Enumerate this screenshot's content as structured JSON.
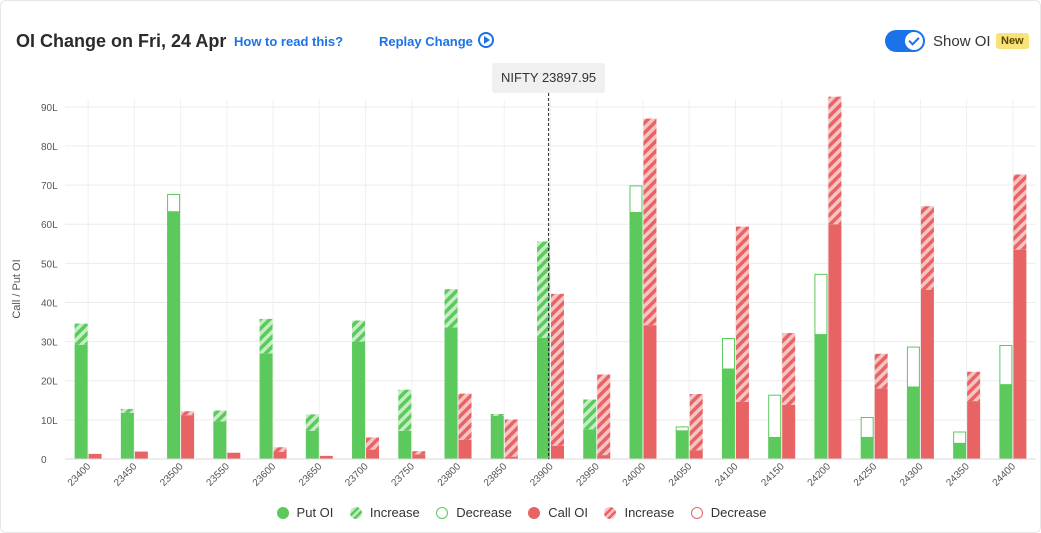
{
  "header": {
    "title": "OI Change on Fri, 24 Apr",
    "how_to_link": "How to read this?",
    "replay_link": "Replay Change",
    "toggle_label": "Show OI",
    "badge": "New"
  },
  "colors": {
    "put": "#5cc95c",
    "put_light": "#c6ecc6",
    "call": "#e86464",
    "call_light": "#f6c4c4"
  },
  "chart_data": {
    "type": "bar",
    "ylabel": "Call / Put OI",
    "ylim": [
      0,
      92
    ],
    "yticks": [
      0,
      10,
      20,
      30,
      40,
      50,
      60,
      70,
      80,
      90
    ],
    "ytick_labels": [
      "0",
      "10L",
      "20L",
      "30L",
      "40L",
      "50L",
      "60L",
      "70L",
      "80L",
      "90L"
    ],
    "grid": true,
    "spot_label": "NIFTY 23897.95",
    "spot_value": 23897.95,
    "categories": [
      "23400",
      "23450",
      "23500",
      "23550",
      "23600",
      "23650",
      "23700",
      "23750",
      "23800",
      "23850",
      "23900",
      "23950",
      "24000",
      "24050",
      "24100",
      "24150",
      "24200",
      "24250",
      "24300",
      "24350",
      "24400"
    ],
    "series": [
      {
        "name": "Put OI",
        "values": [
          29.2,
          11.8,
          63.2,
          9.6,
          27.0,
          7.2,
          30.0,
          7.2,
          33.6,
          11.0,
          31.0,
          7.6,
          63.0,
          7.2,
          23.0,
          5.5,
          31.8,
          5.5,
          18.4,
          4.0,
          19.0
        ]
      },
      {
        "name": "Increase",
        "values": [
          5.4,
          1.0,
          0,
          2.8,
          8.8,
          4.2,
          5.4,
          10.5,
          9.8,
          0.5,
          24.6,
          7.6,
          0,
          0,
          0,
          0,
          0,
          0,
          0,
          0,
          0
        ]
      },
      {
        "name": "Decrease",
        "values": [
          0,
          0,
          4.4,
          0,
          0,
          0,
          0,
          0,
          0,
          0,
          0,
          0,
          6.8,
          1.0,
          7.8,
          10.8,
          15.4,
          5.1,
          10.2,
          2.9,
          10.0
        ]
      },
      {
        "name": "Call OI",
        "values": [
          1.3,
          1.9,
          11.2,
          1.6,
          1.8,
          0.8,
          2.4,
          1.2,
          4.9,
          0.6,
          3.4,
          1.0,
          34.2,
          2.2,
          14.6,
          13.8,
          60.0,
          18.0,
          43.2,
          14.8,
          53.5
        ]
      },
      {
        "name": "Increase",
        "values": [
          0,
          0,
          1.0,
          0,
          1.2,
          0,
          3.1,
          0.8,
          11.8,
          9.5,
          38.8,
          20.6,
          52.8,
          14.4,
          44.8,
          18.4,
          32.6,
          8.9,
          21.4,
          7.5,
          19.2
        ]
      },
      {
        "name": "Decrease",
        "values": [
          0,
          0,
          0,
          0,
          0,
          0,
          0,
          0,
          0,
          0,
          0,
          0,
          0,
          0,
          0,
          0,
          0,
          0,
          0,
          0,
          0
        ]
      }
    ]
  }
}
